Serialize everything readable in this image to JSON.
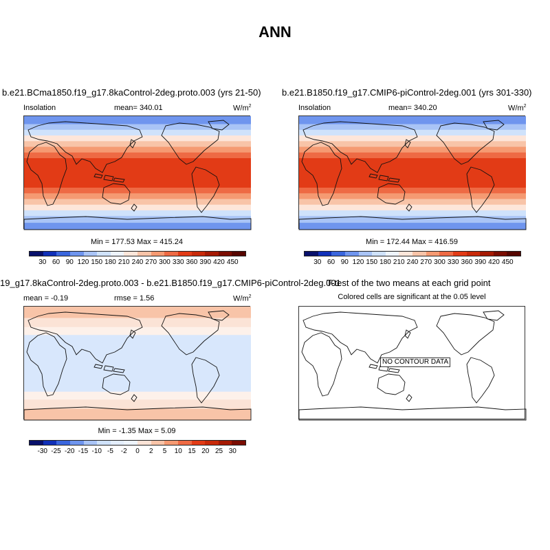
{
  "title": "ANN",
  "panels": [
    {
      "title": "b.e21.BCma1850.f19_g17.8kaControl-2deg.proto.003 (yrs 21-50)",
      "left_label": "Insolation",
      "center_label": "mean= 340.01",
      "units": "W/m",
      "units_sup": "2",
      "minmax": "Min = 177.53 Max = 415.24",
      "type": "sequential"
    },
    {
      "title": "b.e21.B1850.f19_g17.CMIP6-piControl-2deg.001 (yrs 301-330)",
      "left_label": "Insolation",
      "center_label": "mean= 340.20",
      "units": "W/m",
      "units_sup": "2",
      "minmax": "Min = 172.44 Max = 416.59",
      "type": "sequential"
    },
    {
      "title": "19_g17.8kaControl-2deg.proto.003 - b.e21.B1850.f19_g17.CMIP6-piControl-2deg.001",
      "left_label": "mean =  -0.19",
      "center_label": "rmse =   1.56",
      "units": "W/m",
      "units_sup": "2",
      "minmax": "Min =  -1.35 Max =   5.09",
      "type": "difference"
    },
    {
      "title": "T-test of the two means at each grid point",
      "subtitle": "Colored cells are significant at the 0.05 level",
      "nodata": "NO CONTOUR DATA",
      "type": "ttest"
    }
  ],
  "colorbar_seq": {
    "labels": [
      "30",
      "60",
      "90",
      "120",
      "150",
      "180",
      "210",
      "240",
      "270",
      "300",
      "330",
      "360",
      "390",
      "420",
      "450"
    ],
    "colors": [
      "#08106b",
      "#1030b8",
      "#3a66dd",
      "#6f95ee",
      "#a9c4f6",
      "#cfe2fb",
      "#eef4fd",
      "#fde6da",
      "#f8c4a8",
      "#f59a72",
      "#ee6a44",
      "#e23b16",
      "#c82a0a",
      "#a51a04",
      "#7a0d02",
      "#560600"
    ]
  },
  "colorbar_diff": {
    "labels": [
      "-30",
      "-25",
      "-20",
      "-15",
      "-10",
      "-5",
      "-2",
      "0",
      "2",
      "5",
      "10",
      "15",
      "20",
      "25",
      "30"
    ],
    "colors": [
      "#08106b",
      "#1030b8",
      "#3a66dd",
      "#6f95ee",
      "#a9c4f6",
      "#cfe2fb",
      "#e4eefd",
      "#eef4fd",
      "#fbe3d6",
      "#f8c4a8",
      "#f59a72",
      "#ee6a44",
      "#e23b16",
      "#c82a0a",
      "#a51a04",
      "#7a0d02"
    ]
  }
}
